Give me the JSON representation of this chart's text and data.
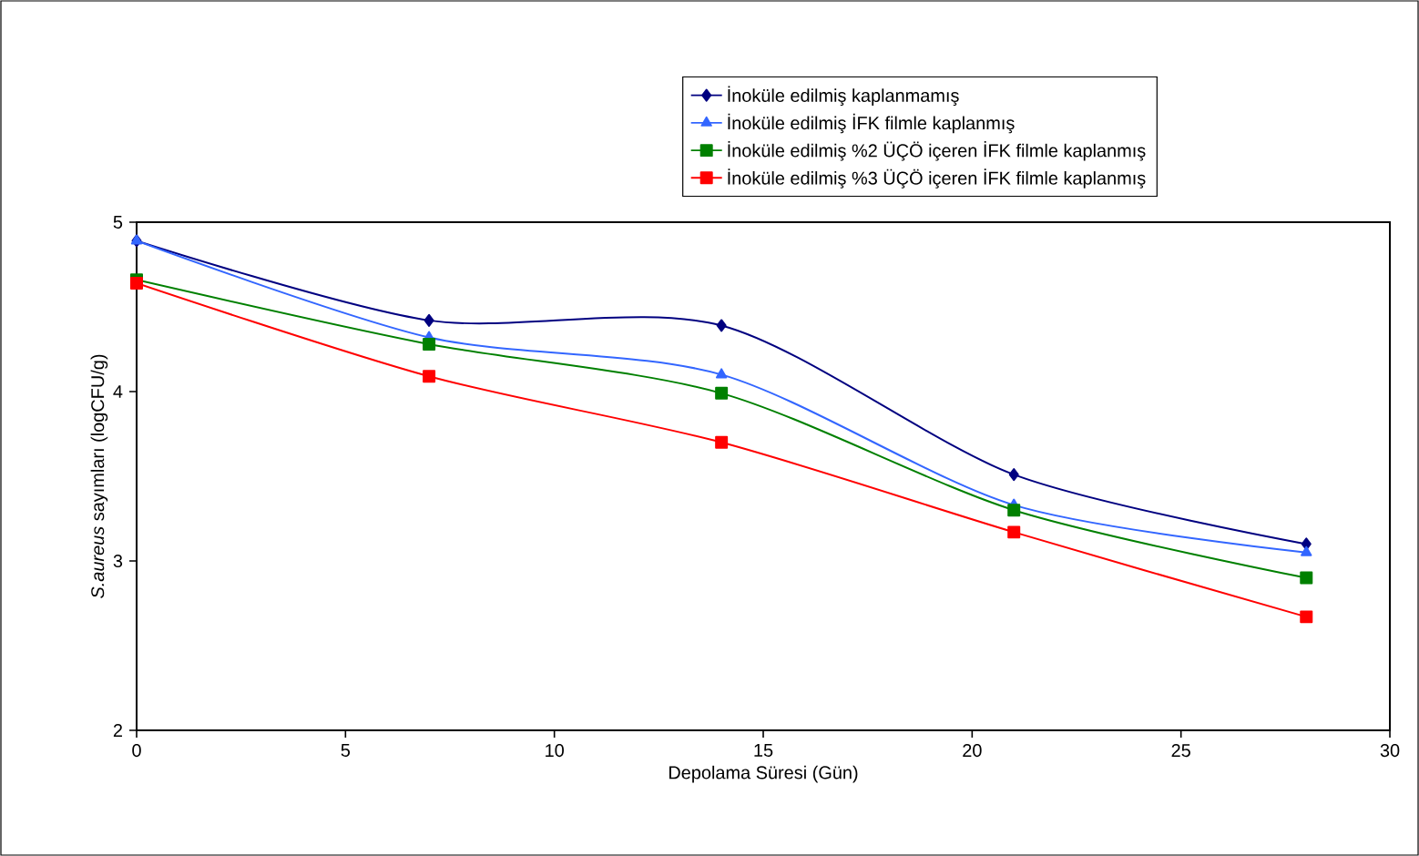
{
  "chart_data": {
    "type": "line",
    "xlabel": "Depolama Süresi (Gün)",
    "ylabel": "*S.aureus* sayımları (logCFU/g)",
    "x": [
      0,
      7,
      14,
      21,
      28
    ],
    "xlim": [
      0,
      30
    ],
    "xticks": [
      0,
      5,
      10,
      15,
      20,
      25,
      30
    ],
    "ylim": [
      2,
      5
    ],
    "yticks": [
      2,
      3,
      4,
      5
    ],
    "grid": false,
    "legend": "top",
    "line_style": "solid",
    "series": [
      {
        "name": "İnoküle edilmiş kaplanmamış",
        "color": "#000080",
        "marker": "diamond",
        "values": [
          4.89,
          4.42,
          4.39,
          3.51,
          3.1
        ]
      },
      {
        "name": "İnoküle edilmiş İFK filmle kaplanmış",
        "color": "#3366ff",
        "marker": "triangle",
        "values": [
          4.89,
          4.32,
          4.1,
          3.33,
          3.05
        ]
      },
      {
        "name": "İnoküle edilmiş %2 ÜÇÖ içeren İFK filmle kaplanmış",
        "color": "#008000",
        "marker": "square",
        "values": [
          4.66,
          4.28,
          3.99,
          3.3,
          2.9
        ]
      },
      {
        "name": "İnoküle edilmiş %3 ÜÇÖ içeren İFK filmle kaplanmış",
        "color": "#ff0000",
        "marker": "square",
        "values": [
          4.64,
          4.09,
          3.7,
          3.17,
          2.67
        ]
      }
    ]
  }
}
